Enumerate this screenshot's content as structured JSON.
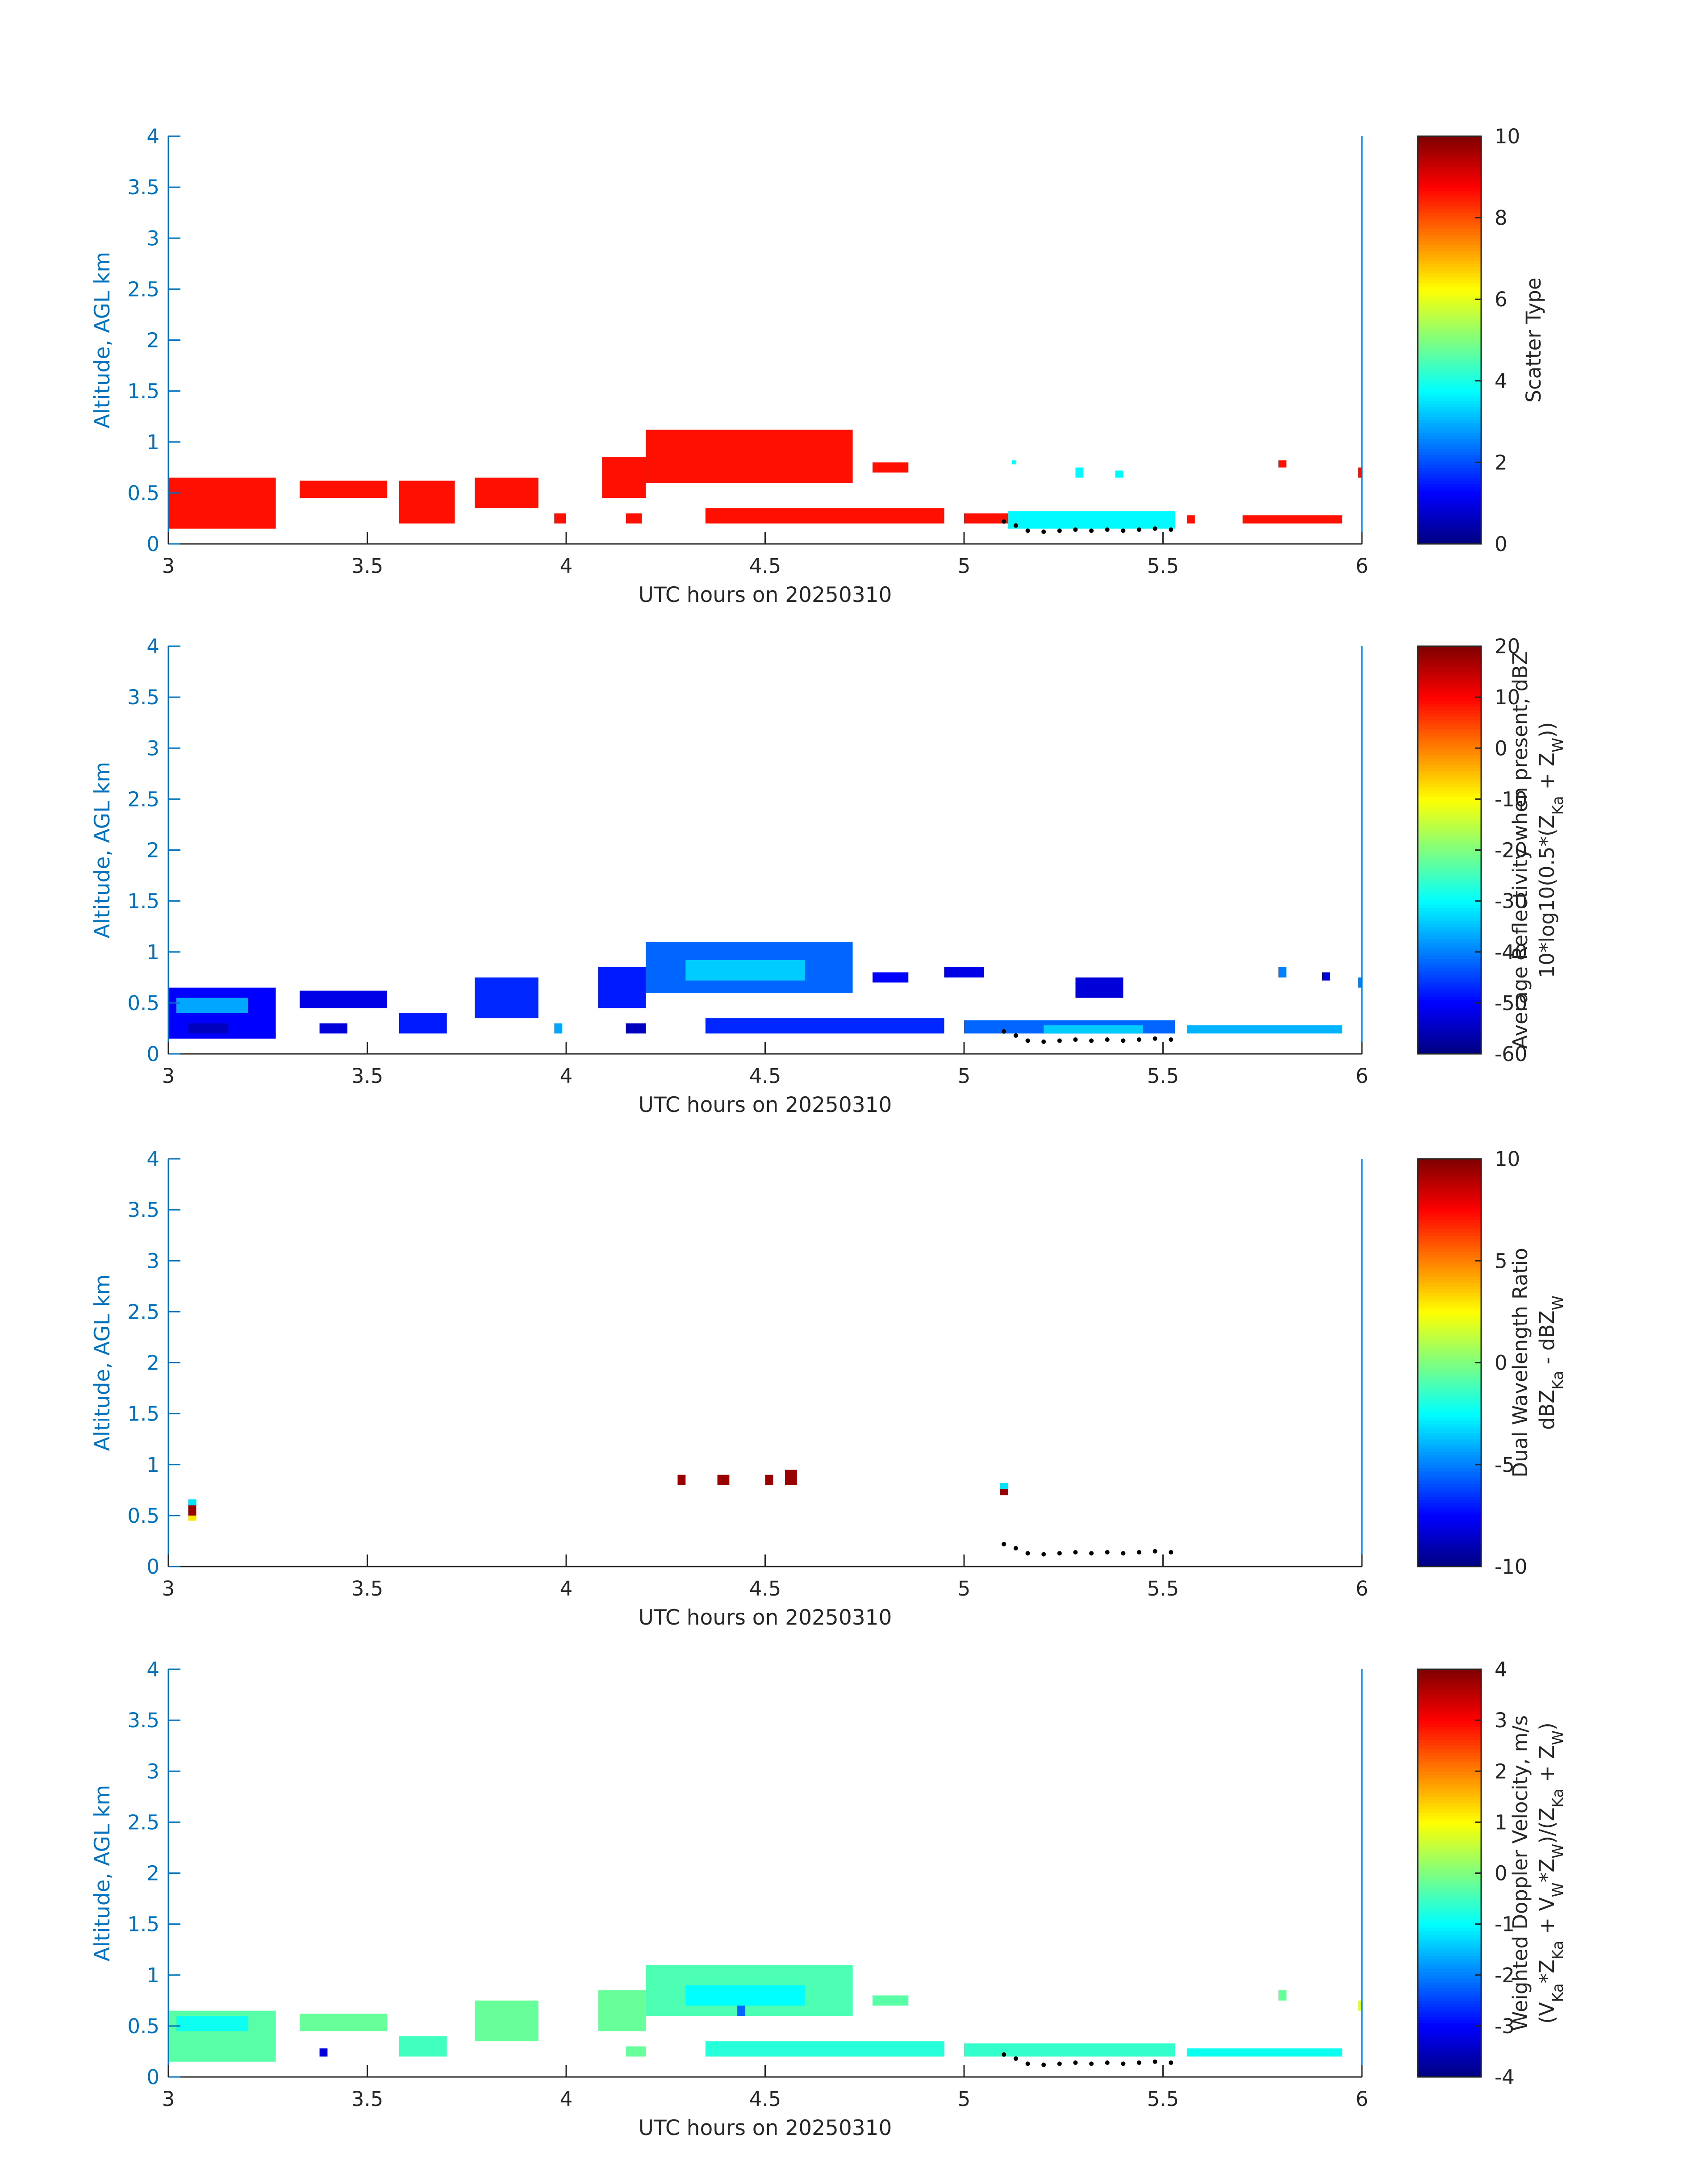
{
  "figure": {
    "background": "#ffffff",
    "axis_color": "#0072BD",
    "text_color": "#262626",
    "colormap": "jet"
  },
  "chart_data": [
    {
      "type": "heatmap",
      "xlabel": "UTC hours on 20250310",
      "ylabel": "Altitude, AGL km",
      "xlim": [
        3,
        6
      ],
      "ylim": [
        0,
        4
      ],
      "xticks": [
        "3",
        "3.5",
        "4",
        "4.5",
        "5",
        "5.5",
        "6"
      ],
      "yticks": [
        "0",
        "0.5",
        "1",
        "1.5",
        "2",
        "2.5",
        "3",
        "3.5",
        "4"
      ],
      "colorbar": {
        "label_lines": [
          "Scatter Type"
        ],
        "range": [
          0,
          10
        ],
        "ticks": [
          "0",
          "2",
          "4",
          "6",
          "8",
          "10"
        ]
      },
      "cells": [
        [
          3.0,
          3.27,
          0.15,
          0.65,
          8.6
        ],
        [
          3.33,
          3.55,
          0.45,
          0.62,
          8.6
        ],
        [
          3.58,
          3.72,
          0.2,
          0.62,
          8.6
        ],
        [
          3.77,
          3.93,
          0.35,
          0.65,
          8.6
        ],
        [
          3.97,
          4.0,
          0.2,
          0.3,
          8.6
        ],
        [
          4.09,
          4.2,
          0.45,
          0.85,
          8.6
        ],
        [
          4.15,
          4.19,
          0.2,
          0.3,
          8.6
        ],
        [
          4.2,
          4.72,
          0.6,
          1.12,
          8.6
        ],
        [
          4.35,
          4.95,
          0.2,
          0.35,
          8.6
        ],
        [
          4.77,
          4.86,
          0.7,
          0.8,
          8.6
        ],
        [
          5.0,
          5.12,
          0.2,
          0.3,
          8.6
        ],
        [
          5.11,
          5.53,
          0.15,
          0.32,
          3.7
        ],
        [
          5.12,
          5.13,
          0.78,
          0.82,
          3.7
        ],
        [
          5.28,
          5.3,
          0.65,
          0.75,
          3.7
        ],
        [
          5.38,
          5.4,
          0.65,
          0.72,
          3.7
        ],
        [
          5.56,
          5.58,
          0.2,
          0.28,
          8.6
        ],
        [
          5.7,
          5.95,
          0.2,
          0.28,
          8.6
        ],
        [
          5.79,
          5.81,
          0.75,
          0.82,
          8.6
        ],
        [
          5.99,
          6.0,
          0.65,
          0.75,
          8.6
        ]
      ],
      "dots": {
        "x": [
          5.1,
          5.13,
          5.16,
          5.2,
          5.24,
          5.28,
          5.32,
          5.36,
          5.4,
          5.44,
          5.48,
          5.52
        ],
        "y": [
          0.22,
          0.18,
          0.13,
          0.12,
          0.13,
          0.14,
          0.13,
          0.14,
          0.13,
          0.14,
          0.15,
          0.14
        ]
      }
    },
    {
      "type": "heatmap",
      "xlabel": "UTC hours on 20250310",
      "ylabel": "Altitude, AGL km",
      "xlim": [
        3,
        6
      ],
      "ylim": [
        0,
        4
      ],
      "xticks": [
        "3",
        "3.5",
        "4",
        "4.5",
        "5",
        "5.5",
        "6"
      ],
      "yticks": [
        "0",
        "0.5",
        "1",
        "1.5",
        "2",
        "2.5",
        "3",
        "3.5",
        "4"
      ],
      "colorbar": {
        "label_lines": [
          "Average Reflectivity when present, dBZ",
          "10*log10(0.5*(Z_Ka + Z_W))"
        ],
        "range": [
          -60,
          20
        ],
        "ticks": [
          "-60",
          "-50",
          "-40",
          "-30",
          "-20",
          "-10",
          "0",
          "10",
          "20"
        ]
      },
      "cells": [
        [
          3.0,
          3.27,
          0.15,
          0.65,
          -50
        ],
        [
          3.02,
          3.2,
          0.4,
          0.55,
          -37
        ],
        [
          3.05,
          3.15,
          0.2,
          0.3,
          -55
        ],
        [
          3.33,
          3.55,
          0.45,
          0.62,
          -52
        ],
        [
          3.38,
          3.45,
          0.2,
          0.3,
          -53
        ],
        [
          3.58,
          3.7,
          0.2,
          0.4,
          -48
        ],
        [
          3.77,
          3.93,
          0.35,
          0.75,
          -47
        ],
        [
          3.97,
          3.99,
          0.2,
          0.3,
          -37
        ],
        [
          4.08,
          4.2,
          0.45,
          0.85,
          -48
        ],
        [
          4.15,
          4.2,
          0.2,
          0.3,
          -55
        ],
        [
          4.2,
          4.72,
          0.6,
          1.1,
          -42
        ],
        [
          4.3,
          4.6,
          0.72,
          0.92,
          -34
        ],
        [
          4.35,
          4.95,
          0.2,
          0.35,
          -47
        ],
        [
          4.77,
          4.86,
          0.7,
          0.8,
          -50
        ],
        [
          4.95,
          5.05,
          0.75,
          0.85,
          -52
        ],
        [
          5.0,
          5.53,
          0.2,
          0.33,
          -42
        ],
        [
          5.2,
          5.45,
          0.2,
          0.28,
          -34
        ],
        [
          5.28,
          5.4,
          0.55,
          0.75,
          -53
        ],
        [
          5.56,
          5.95,
          0.2,
          0.28,
          -36
        ],
        [
          5.79,
          5.81,
          0.75,
          0.85,
          -40
        ],
        [
          5.9,
          5.92,
          0.72,
          0.8,
          -53
        ],
        [
          5.99,
          6.0,
          0.65,
          0.75,
          -40
        ]
      ],
      "dots": {
        "x": [
          5.1,
          5.13,
          5.16,
          5.2,
          5.24,
          5.28,
          5.32,
          5.36,
          5.4,
          5.44,
          5.48,
          5.52
        ],
        "y": [
          0.22,
          0.18,
          0.13,
          0.12,
          0.13,
          0.14,
          0.13,
          0.14,
          0.13,
          0.14,
          0.15,
          0.14
        ]
      }
    },
    {
      "type": "heatmap",
      "xlabel": "UTC hours on 20250310",
      "ylabel": "Altitude, AGL km",
      "xlim": [
        3,
        6
      ],
      "ylim": [
        0,
        4
      ],
      "xticks": [
        "3",
        "3.5",
        "4",
        "4.5",
        "5",
        "5.5",
        "6"
      ],
      "yticks": [
        "0",
        "0.5",
        "1",
        "1.5",
        "2",
        "2.5",
        "3",
        "3.5",
        "4"
      ],
      "colorbar": {
        "label_lines": [
          "Dual Wavelength Ratio",
          "dBZ_Ka - dBZ_W"
        ],
        "range": [
          -10,
          10
        ],
        "ticks": [
          "-10",
          "-5",
          "0",
          "5",
          "10"
        ]
      },
      "cells": [
        [
          3.05,
          3.07,
          0.6,
          0.66,
          -3
        ],
        [
          3.05,
          3.07,
          0.5,
          0.6,
          9.5
        ],
        [
          3.05,
          3.07,
          0.45,
          0.5,
          3
        ],
        [
          4.28,
          4.3,
          0.8,
          0.9,
          9.5
        ],
        [
          4.38,
          4.41,
          0.8,
          0.9,
          9.5
        ],
        [
          4.5,
          4.52,
          0.8,
          0.9,
          9.5
        ],
        [
          4.55,
          4.58,
          0.8,
          0.95,
          9.5
        ],
        [
          5.09,
          5.11,
          0.76,
          0.82,
          -3
        ],
        [
          5.09,
          5.11,
          0.7,
          0.76,
          9.5
        ]
      ],
      "dots": {
        "x": [
          5.1,
          5.13,
          5.16,
          5.2,
          5.24,
          5.28,
          5.32,
          5.36,
          5.4,
          5.44,
          5.48,
          5.52
        ],
        "y": [
          0.22,
          0.18,
          0.13,
          0.12,
          0.13,
          0.14,
          0.13,
          0.14,
          0.13,
          0.14,
          0.15,
          0.14
        ]
      }
    },
    {
      "type": "heatmap",
      "xlabel": "UTC hours on 20250310",
      "ylabel": "Altitude, AGL km",
      "xlim": [
        3,
        6
      ],
      "ylim": [
        0,
        4
      ],
      "xticks": [
        "3",
        "3.5",
        "4",
        "4.5",
        "5",
        "5.5",
        "6"
      ],
      "yticks": [
        "0",
        "0.5",
        "1",
        "1.5",
        "2",
        "2.5",
        "3",
        "3.5",
        "4"
      ],
      "colorbar": {
        "label_lines": [
          "Weighted Doppler Velocity, m/s",
          "(V_Ka*Z_Ka + V_W*Z_W)/(Z_Ka + Z_W)"
        ],
        "range": [
          -4,
          4
        ],
        "ticks": [
          "-4",
          "-3",
          "-2",
          "-1",
          "0",
          "1",
          "2",
          "3",
          "4"
        ]
      },
      "cells": [
        [
          3.0,
          3.27,
          0.15,
          0.65,
          -0.3
        ],
        [
          3.02,
          3.2,
          0.45,
          0.6,
          -0.9
        ],
        [
          3.33,
          3.55,
          0.45,
          0.62,
          -0.2
        ],
        [
          3.58,
          3.7,
          0.2,
          0.4,
          -0.5
        ],
        [
          3.77,
          3.93,
          0.35,
          0.75,
          -0.2
        ],
        [
          4.08,
          4.2,
          0.45,
          0.85,
          -0.2
        ],
        [
          4.15,
          4.2,
          0.2,
          0.3,
          -0.2
        ],
        [
          4.2,
          4.72,
          0.6,
          1.1,
          -0.4
        ],
        [
          4.3,
          4.6,
          0.7,
          0.9,
          -1.0
        ],
        [
          4.35,
          4.95,
          0.2,
          0.35,
          -0.7
        ],
        [
          4.77,
          4.86,
          0.7,
          0.8,
          -0.3
        ],
        [
          5.0,
          5.53,
          0.2,
          0.33,
          -0.6
        ],
        [
          5.56,
          5.95,
          0.2,
          0.28,
          -0.9
        ],
        [
          5.79,
          5.81,
          0.75,
          0.85,
          -0.2
        ],
        [
          5.99,
          6.0,
          0.65,
          0.75,
          0.8
        ],
        [
          3.38,
          3.4,
          0.2,
          0.28,
          -3.3
        ],
        [
          4.43,
          4.45,
          0.6,
          0.7,
          -2.2
        ]
      ],
      "dots": {
        "x": [
          5.1,
          5.13,
          5.16,
          5.2,
          5.24,
          5.28,
          5.32,
          5.36,
          5.4,
          5.44,
          5.48,
          5.52
        ],
        "y": [
          0.22,
          0.18,
          0.13,
          0.12,
          0.13,
          0.14,
          0.13,
          0.14,
          0.13,
          0.14,
          0.15,
          0.14
        ]
      }
    }
  ]
}
